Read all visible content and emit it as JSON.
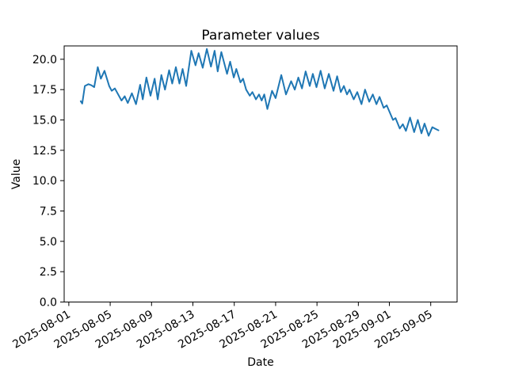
{
  "chart_data": {
    "type": "line",
    "title": "Parameter values",
    "xlabel": "Date",
    "ylabel": "Value",
    "grid": false,
    "legend": "none",
    "line_color": "#1f77b4",
    "ylim": [
      0,
      21.1
    ],
    "xlim_days": [
      -0.45,
      37.55
    ],
    "x_tick_labels": [
      "2025-08-01",
      "2025-08-05",
      "2025-08-09",
      "2025-08-13",
      "2025-08-17",
      "2025-08-21",
      "2025-08-25",
      "2025-08-29",
      "2025-09-01",
      "2025-09-05"
    ],
    "x_tick_days": [
      0,
      4,
      8,
      12,
      16,
      20,
      24,
      28,
      31,
      35
    ],
    "y_tick_labels": [
      "0.0",
      "2.5",
      "5.0",
      "7.5",
      "10.0",
      "12.5",
      "15.0",
      "17.5",
      "20.0"
    ],
    "y_tick_values": [
      0,
      2.5,
      5,
      7.5,
      10,
      12.5,
      15,
      17.5,
      20
    ],
    "series": [
      {
        "name": "parameter-values",
        "x_days_since_2025_08_01": [
          1.15,
          1.3,
          1.55,
          1.9,
          2.2,
          2.45,
          2.8,
          3.1,
          3.45,
          3.9,
          4.15,
          4.45,
          5.1,
          5.4,
          5.7,
          6.1,
          6.5,
          6.9,
          7.15,
          7.5,
          7.9,
          8.3,
          8.6,
          8.95,
          9.3,
          9.7,
          10.0,
          10.35,
          10.7,
          11.0,
          11.35,
          11.85,
          12.25,
          12.55,
          12.95,
          13.35,
          13.75,
          14.1,
          14.4,
          14.75,
          15.3,
          15.6,
          15.95,
          16.2,
          16.6,
          16.85,
          17.15,
          17.5,
          17.75,
          18.1,
          18.4,
          18.65,
          18.9,
          19.2,
          19.65,
          20.0,
          20.55,
          21.0,
          21.5,
          21.85,
          22.2,
          22.55,
          22.9,
          23.3,
          23.6,
          23.95,
          24.35,
          24.75,
          25.15,
          25.6,
          25.95,
          26.3,
          26.6,
          26.9,
          27.15,
          27.55,
          27.9,
          28.3,
          28.65,
          29.05,
          29.4,
          29.75,
          30.05,
          30.45,
          30.75,
          31.35,
          31.6,
          32.0,
          32.3,
          32.6,
          33.0,
          33.4,
          33.75,
          34.1,
          34.4,
          34.8,
          35.15,
          35.5,
          35.75
        ],
        "y": [
          16.55,
          16.35,
          17.8,
          17.95,
          17.85,
          17.7,
          19.35,
          18.4,
          19.05,
          17.8,
          17.4,
          17.6,
          16.6,
          16.95,
          16.4,
          17.2,
          16.3,
          17.9,
          16.7,
          18.5,
          17.0,
          18.4,
          16.7,
          18.7,
          17.5,
          19.1,
          18.0,
          19.35,
          18.0,
          19.2,
          17.8,
          20.7,
          19.5,
          20.5,
          19.3,
          20.85,
          19.4,
          20.7,
          19.0,
          20.6,
          18.8,
          19.8,
          18.5,
          19.2,
          18.1,
          18.4,
          17.5,
          17.0,
          17.3,
          16.7,
          17.1,
          16.6,
          17.1,
          15.9,
          17.4,
          16.8,
          18.7,
          17.1,
          18.2,
          17.5,
          18.5,
          17.6,
          19.0,
          17.8,
          18.8,
          17.7,
          19.05,
          17.6,
          18.8,
          17.4,
          18.6,
          17.3,
          17.8,
          17.1,
          17.5,
          16.7,
          17.3,
          16.3,
          17.5,
          16.5,
          17.1,
          16.3,
          16.9,
          16.0,
          16.2,
          15.0,
          15.15,
          14.3,
          14.65,
          14.1,
          15.2,
          14.0,
          15.0,
          13.9,
          14.7,
          13.7,
          14.4,
          14.25,
          14.15
        ]
      }
    ]
  }
}
